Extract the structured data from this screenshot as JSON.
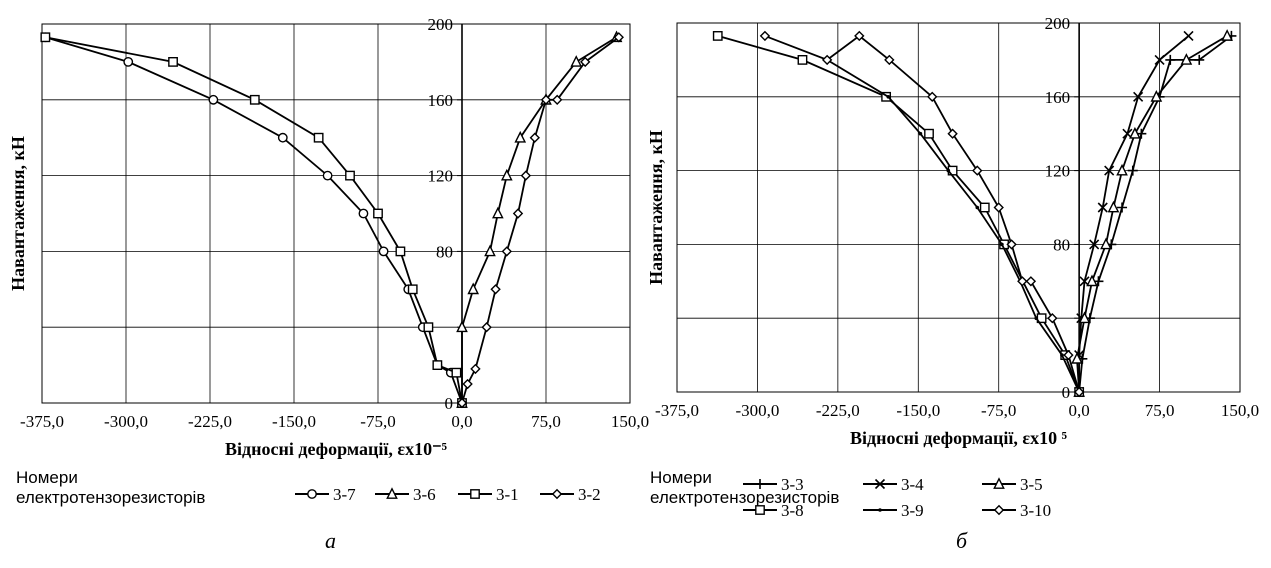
{
  "chart_data": [
    {
      "type": "line",
      "panel_label": "а",
      "ylabel": "Навантаження,  кН",
      "xlabel": "Відносні деформації,  εx10⁻⁵",
      "xlim": [
        -375,
        150
      ],
      "ylim": [
        0,
        200
      ],
      "x_ticks": [
        -375,
        -300,
        -225,
        -150,
        -75,
        0,
        75,
        150
      ],
      "x_tick_labels": [
        "-375,0",
        "-300,0",
        "-225,0",
        "-150,0",
        "-75,0",
        "0,0",
        "75,0",
        "150,0"
      ],
      "y_ticks": [
        0,
        40,
        80,
        120,
        160,
        200
      ],
      "y_tick_labels": [
        "0",
        "",
        "80",
        "120",
        "160",
        "200"
      ],
      "grid": true,
      "legend_title": "Номери\nелектротензорезисторів",
      "legend_placement": "bottom",
      "series": [
        {
          "name": "3-7",
          "marker": "circle",
          "x": [
            0,
            -10,
            -22,
            -35,
            -48,
            -70,
            -88,
            -120,
            -160,
            -222,
            -298,
            -372
          ],
          "y": [
            0,
            16,
            20,
            40,
            60,
            80,
            100,
            120,
            140,
            160,
            180,
            193
          ]
        },
        {
          "name": "3-6",
          "marker": "triangle",
          "x": [
            0,
            0,
            10,
            25,
            32,
            40,
            52,
            75,
            102,
            138
          ],
          "y": [
            0,
            40,
            60,
            80,
            100,
            120,
            140,
            160,
            180,
            193
          ]
        },
        {
          "name": "3-1",
          "marker": "square",
          "x": [
            0,
            -5,
            -22,
            -30,
            -44,
            -55,
            -75,
            -100,
            -128,
            -185,
            -258,
            -372
          ],
          "y": [
            0,
            16,
            20,
            40,
            60,
            80,
            100,
            120,
            140,
            160,
            180,
            193
          ]
        },
        {
          "name": "3-2",
          "marker": "diamond",
          "x": [
            0,
            5,
            12,
            22,
            30,
            40,
            50,
            57,
            65,
            75,
            85,
            110,
            140
          ],
          "y": [
            0,
            10,
            18,
            40,
            60,
            80,
            100,
            120,
            140,
            160,
            160,
            180,
            193
          ]
        }
      ]
    },
    {
      "type": "line",
      "panel_label": "б",
      "ylabel": "Навантаження,  кН",
      "xlabel": "Відносні деформації,  εx10 ⁵",
      "xlim": [
        -375,
        150
      ],
      "ylim": [
        0,
        200
      ],
      "x_ticks": [
        -375,
        -300,
        -225,
        -150,
        -75,
        0,
        75,
        150
      ],
      "x_tick_labels": [
        "-375,0",
        "-300,0",
        "-225,0",
        "-150,0",
        "-75,0",
        "0,0",
        "75,0",
        "150,0"
      ],
      "y_ticks": [
        0,
        40,
        80,
        120,
        160,
        200
      ],
      "y_tick_labels": [
        "0",
        "",
        "80",
        "120",
        "160",
        "200"
      ],
      "grid": true,
      "legend_title": "Номери\nелектротензорезисторів",
      "legend_placement": "bottom",
      "series": [
        {
          "name": "3-3",
          "marker": "plus",
          "x": [
            0,
            3,
            10,
            18,
            30,
            40,
            50,
            58,
            75,
            85,
            112,
            142
          ],
          "y": [
            0,
            18,
            40,
            60,
            80,
            100,
            120,
            140,
            160,
            180,
            180,
            193
          ]
        },
        {
          "name": "3-4",
          "marker": "cross",
          "x": [
            0,
            0,
            2,
            5,
            14,
            22,
            28,
            45,
            55,
            75,
            102
          ],
          "y": [
            0,
            20,
            40,
            60,
            80,
            100,
            120,
            140,
            160,
            180,
            193
          ]
        },
        {
          "name": "3-5",
          "marker": "triangle",
          "x": [
            0,
            -2,
            5,
            12,
            25,
            32,
            40,
            52,
            72,
            100,
            138
          ],
          "y": [
            0,
            18,
            40,
            60,
            80,
            100,
            120,
            140,
            160,
            180,
            193
          ]
        },
        {
          "name": "3-8",
          "marker": "square",
          "x": [
            0,
            -13,
            -35,
            -70,
            -88,
            -118,
            -140,
            -180,
            -258,
            -337
          ],
          "y": [
            0,
            20,
            40,
            80,
            100,
            120,
            140,
            160,
            180,
            193
          ]
        },
        {
          "name": "3-9",
          "marker": "dot",
          "x": [
            0,
            -16,
            -40,
            -55,
            -72,
            -95,
            -122,
            -148,
            -178,
            -235
          ],
          "y": [
            0,
            20,
            40,
            60,
            80,
            100,
            120,
            140,
            160,
            180
          ]
        },
        {
          "name": "3-10",
          "marker": "diamond",
          "x": [
            0,
            -10,
            -25,
            -45,
            -53,
            -63,
            -75,
            -95,
            -118,
            -137,
            -177,
            -205,
            -235,
            -293
          ],
          "y": [
            0,
            20,
            40,
            60,
            60,
            80,
            100,
            120,
            140,
            160,
            180,
            193,
            180,
            193
          ]
        }
      ]
    }
  ]
}
